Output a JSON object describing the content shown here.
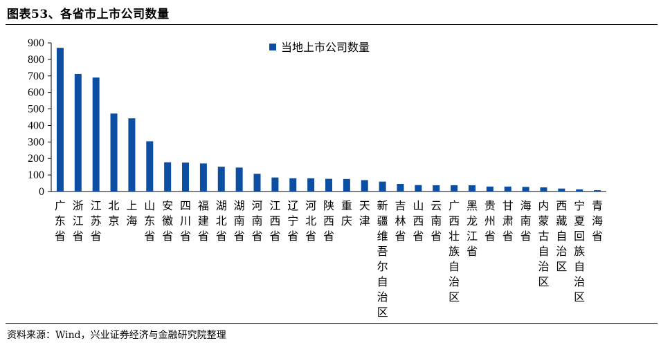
{
  "figure": {
    "title": "图表53、各省市上市公司数量",
    "source": "资料来源：Wind，兴业证券经济与金融研究院整理"
  },
  "colors": {
    "bar": "#0b4ea2",
    "axis": "#000000"
  },
  "chart_data": {
    "type": "bar",
    "categories": [
      "广东省",
      "浙江省",
      "江苏省",
      "北京",
      "上海",
      "山东省",
      "安徽省",
      "四川省",
      "福建省",
      "湖北省",
      "湖南省",
      "河南省",
      "江西省",
      "辽宁省",
      "河北省",
      "陕西省",
      "重庆",
      "天津",
      "新疆维吾尔自治区",
      "吉林省",
      "山西省",
      "云南省",
      "广西壮族自治区",
      "黑龙江省",
      "贵州省",
      "甘肃省",
      "海南省",
      "内蒙古自治区",
      "西藏自治区",
      "宁夏回族自治区",
      "青海省"
    ],
    "series": [
      {
        "name": "当地上市公司数量",
        "values": [
          870,
          712,
          690,
          472,
          443,
          304,
          177,
          175,
          170,
          150,
          145,
          107,
          85,
          80,
          80,
          77,
          76,
          69,
          60,
          46,
          39,
          38,
          38,
          38,
          30,
          30,
          28,
          25,
          18,
          13,
          8
        ]
      }
    ],
    "yticks": [
      0,
      100,
      200,
      300,
      400,
      500,
      600,
      700,
      800,
      900
    ],
    "ylim": [
      0,
      900
    ],
    "legend_position": "top-center",
    "grid": false
  }
}
